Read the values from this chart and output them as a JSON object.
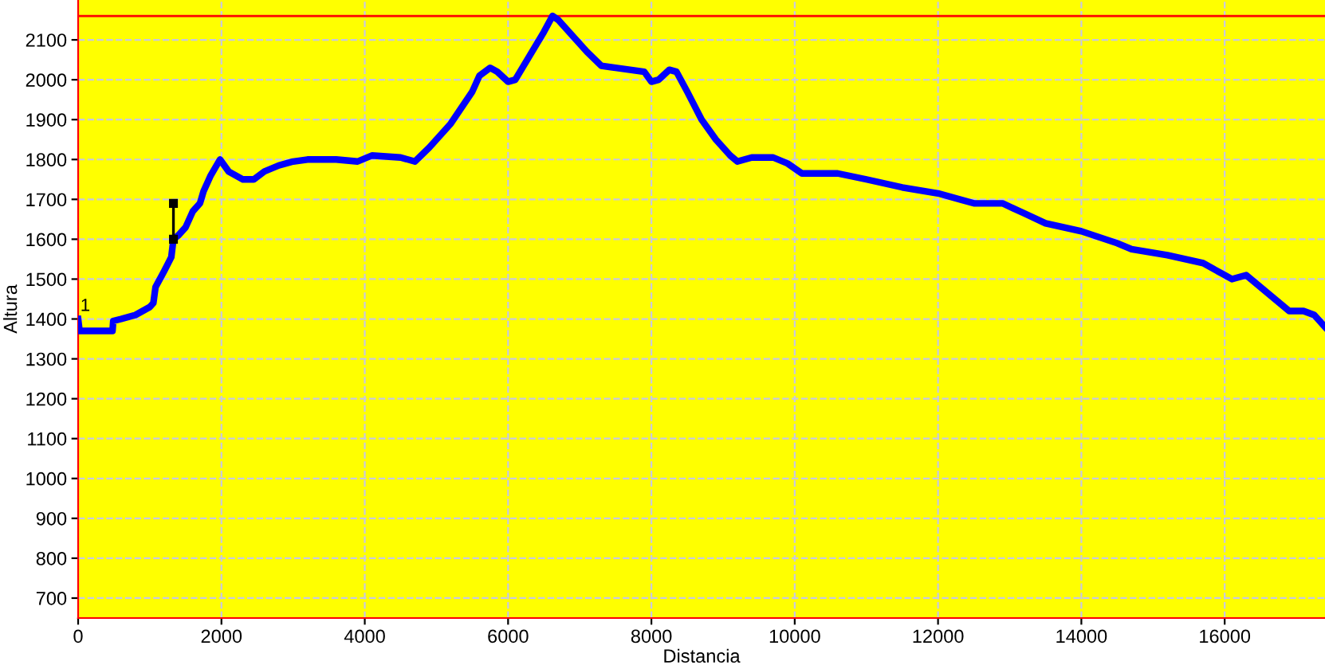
{
  "chart_data": {
    "type": "line",
    "xlabel": "Distancia",
    "ylabel": "Altura",
    "xlim": [
      0,
      17400
    ],
    "ylim": [
      650,
      2200
    ],
    "xticks": [
      0,
      2000,
      4000,
      6000,
      8000,
      10000,
      12000,
      14000,
      16000
    ],
    "yticks": [
      700,
      800,
      900,
      1000,
      1100,
      1200,
      1300,
      1400,
      1500,
      1600,
      1700,
      1800,
      1900,
      2000,
      2100
    ],
    "grid": true,
    "legend": false,
    "series": [
      {
        "color": "#0000ff",
        "x": [
          0,
          20,
          480,
          490,
          600,
          800,
          1000,
          1050,
          1080,
          1200,
          1300,
          1330,
          1400,
          1500,
          1600,
          1700,
          1750,
          1850,
          1980,
          2100,
          2300,
          2450,
          2600,
          2800,
          3000,
          3200,
          3600,
          3900,
          4100,
          4500,
          4700,
          4900,
          5200,
          5500,
          5600,
          5750,
          5850,
          6000,
          6100,
          6300,
          6500,
          6620,
          6700,
          6900,
          7100,
          7300,
          7500,
          7900,
          8000,
          8100,
          8250,
          8350,
          8500,
          8700,
          8900,
          9100,
          9200,
          9400,
          9700,
          9900,
          10100,
          10600,
          11000,
          11500,
          12000,
          12500,
          12900,
          13200,
          13500,
          14000,
          14500,
          14700,
          15200,
          15700,
          16000,
          16100,
          16300,
          16500,
          16700,
          16900,
          17100,
          17250,
          17400
        ],
        "values": [
          1400,
          1370,
          1370,
          1395,
          1400,
          1410,
          1430,
          1440,
          1480,
          1520,
          1555,
          1600,
          1610,
          1630,
          1670,
          1690,
          1720,
          1760,
          1800,
          1770,
          1750,
          1750,
          1770,
          1785,
          1795,
          1800,
          1800,
          1795,
          1810,
          1805,
          1795,
          1830,
          1890,
          1970,
          2010,
          2030,
          2020,
          1995,
          2000,
          2060,
          2120,
          2160,
          2150,
          2110,
          2070,
          2035,
          2030,
          2020,
          1995,
          2000,
          2025,
          2020,
          1970,
          1900,
          1850,
          1810,
          1795,
          1805,
          1805,
          1790,
          1765,
          1765,
          1750,
          1730,
          1715,
          1690,
          1690,
          1665,
          1640,
          1620,
          1590,
          1575,
          1560,
          1540,
          1510,
          1500,
          1510,
          1480,
          1450,
          1420,
          1420,
          1410,
          1380
        ]
      },
      {
        "color": "#000000",
        "x": [
          1330,
          1330
        ],
        "values": [
          1600,
          1690
        ],
        "marker": "square"
      }
    ],
    "ref_lines": [
      {
        "axis": "y",
        "value": 2160,
        "color": "#ff0000"
      }
    ],
    "annotations": [
      {
        "text": "1",
        "x": 0,
        "y": 1420
      }
    ]
  }
}
